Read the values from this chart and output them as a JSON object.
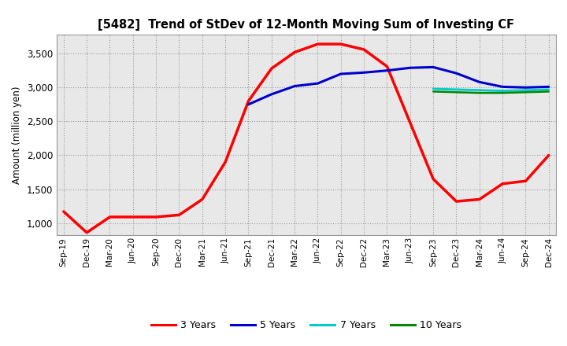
{
  "title": "[5482]  Trend of StDev of 12-Month Moving Sum of Investing CF",
  "ylabel": "Amount (million yen)",
  "bg_figure": "#ffffff",
  "bg_axes": "#e8e8e8",
  "grid_color": "#888888",
  "ylim": [
    820,
    3780
  ],
  "yticks": [
    1000,
    1500,
    2000,
    2500,
    3000,
    3500
  ],
  "x_labels": [
    "Sep-19",
    "Dec-19",
    "Mar-20",
    "Jun-20",
    "Sep-20",
    "Dec-20",
    "Mar-21",
    "Jun-21",
    "Sep-21",
    "Dec-21",
    "Mar-22",
    "Jun-22",
    "Sep-22",
    "Dec-22",
    "Mar-23",
    "Jun-23",
    "Sep-23",
    "Dec-23",
    "Mar-24",
    "Jun-24",
    "Sep-24",
    "Dec-24"
  ],
  "series": {
    "3yr": {
      "color": "#ff0000",
      "label": "3 Years",
      "linewidth": 2.5,
      "x": [
        0,
        1,
        2,
        3,
        4,
        5,
        6,
        7,
        8,
        9,
        10,
        11,
        12,
        13,
        14,
        15,
        16,
        17,
        18,
        19,
        20,
        21
      ],
      "y": [
        1170,
        860,
        1090,
        1090,
        1090,
        1120,
        1350,
        1900,
        2800,
        3280,
        3520,
        3640,
        3640,
        3560,
        3310,
        2480,
        1650,
        1320,
        1350,
        1580,
        1620,
        2000
      ]
    },
    "5yr": {
      "color": "#0000cc",
      "label": "5 Years",
      "linewidth": 2.2,
      "x": [
        8,
        9,
        10,
        11,
        12,
        13,
        14,
        15,
        16,
        17,
        18,
        19,
        20,
        21
      ],
      "y": [
        2750,
        2900,
        3020,
        3060,
        3200,
        3220,
        3250,
        3290,
        3300,
        3210,
        3080,
        3010,
        3000,
        3010
      ]
    },
    "7yr": {
      "color": "#00cccc",
      "label": "7 Years",
      "linewidth": 2.0,
      "x": [
        16,
        17,
        18,
        19,
        20,
        21
      ],
      "y": [
        2980,
        2970,
        2960,
        2950,
        2960,
        2970
      ]
    },
    "10yr": {
      "color": "#008800",
      "label": "10 Years",
      "linewidth": 1.8,
      "x": [
        16,
        17,
        18,
        19,
        20,
        21
      ],
      "y": [
        2940,
        2930,
        2920,
        2920,
        2930,
        2940
      ]
    }
  },
  "legend": {
    "labels": [
      "3 Years",
      "5 Years",
      "7 Years",
      "10 Years"
    ],
    "colors": [
      "#ff0000",
      "#0000cc",
      "#00cccc",
      "#008800"
    ]
  }
}
